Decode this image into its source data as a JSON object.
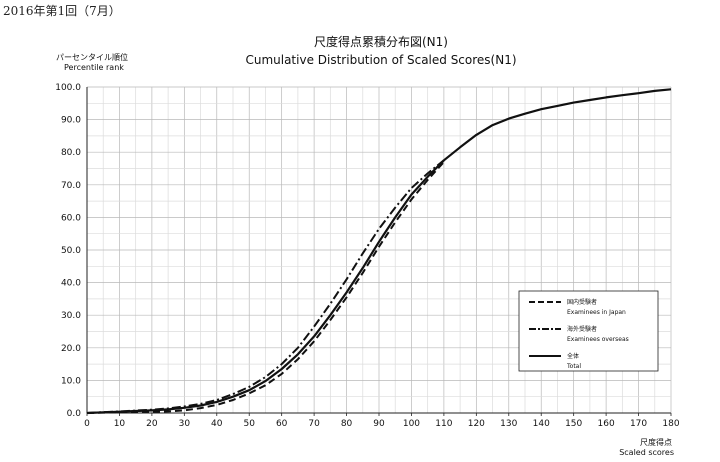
{
  "caption": "2016年第1回（7月）",
  "chart_data": {
    "type": "line",
    "title": "尺度得点累積分布図(N1)",
    "subtitle": "Cumulative Distribution of Scaled Scores(N1)",
    "ylabel_jp": "パーセンタイル順位",
    "ylabel_en": "Percentile rank",
    "xlabel_jp": "尺度得点",
    "xlabel_en": "Scaled scores",
    "xlim": [
      0,
      180
    ],
    "ylim": [
      0,
      100
    ],
    "x_ticks": [
      0,
      10,
      20,
      30,
      40,
      50,
      60,
      70,
      80,
      90,
      100,
      110,
      120,
      130,
      140,
      150,
      160,
      170,
      180
    ],
    "y_ticks": [
      "0.0",
      "10.0",
      "20.0",
      "30.0",
      "40.0",
      "50.0",
      "60.0",
      "70.0",
      "80.0",
      "90.0",
      "100.0"
    ],
    "grid": true,
    "legend_position": "lower-right",
    "series": [
      {
        "name_jp": "国内受験者",
        "name_en": "Examinees in Japan",
        "style": "dashed",
        "x": [
          0,
          10,
          20,
          25,
          30,
          35,
          40,
          45,
          50,
          55,
          60,
          65,
          70,
          75,
          80,
          85,
          90,
          95,
          100,
          105,
          110
        ],
        "y": [
          0,
          0.2,
          0.4,
          0.5,
          0.8,
          1.5,
          2.5,
          4,
          6,
          8.5,
          12,
          16.5,
          22,
          28.5,
          35.5,
          43,
          51,
          58.5,
          65.5,
          71.5,
          77
        ]
      },
      {
        "name_jp": "海外受験者",
        "name_en": "Examinees overseas",
        "style": "dashdot",
        "x": [
          0,
          10,
          20,
          25,
          30,
          35,
          40,
          45,
          50,
          55,
          60,
          65,
          70,
          75,
          80,
          85,
          90,
          95,
          100,
          105,
          110
        ],
        "y": [
          0,
          0.5,
          1,
          1.4,
          2,
          2.8,
          4,
          5.8,
          8,
          11,
          15,
          20,
          26.5,
          33.5,
          41,
          49,
          56.5,
          63,
          69,
          73.5,
          77.5
        ]
      },
      {
        "name_jp": "全体",
        "name_en": "Total",
        "style": "solid",
        "x": [
          0,
          10,
          20,
          25,
          30,
          35,
          40,
          45,
          50,
          55,
          60,
          65,
          70,
          75,
          80,
          85,
          90,
          95,
          100,
          105,
          110,
          115,
          120,
          125,
          130,
          135,
          140,
          145,
          150,
          155,
          160,
          165,
          170,
          175,
          180
        ],
        "y": [
          0,
          0.4,
          0.8,
          1.1,
          1.6,
          2.3,
          3.4,
          5,
          7,
          9.8,
          13.5,
          18,
          23.5,
          30,
          37,
          44.5,
          52.5,
          60,
          67,
          72.5,
          77.5,
          81.5,
          85.3,
          88.3,
          90.3,
          91.8,
          93.2,
          94.2,
          95.2,
          96,
          96.8,
          97.5,
          98.1,
          98.8,
          99.3
        ]
      }
    ]
  }
}
